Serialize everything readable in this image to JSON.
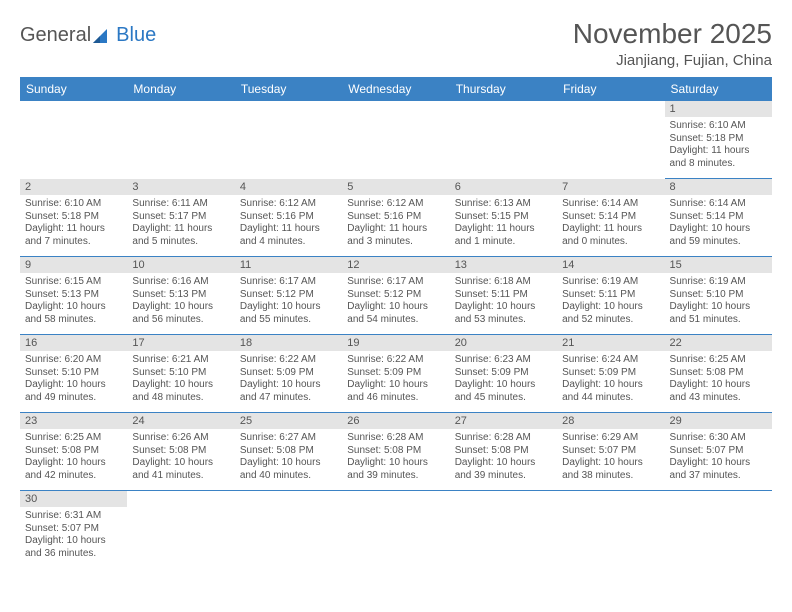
{
  "brand": {
    "word1": "General",
    "word2": "Blue"
  },
  "header": {
    "month_title": "November 2025",
    "location": "Jianjiang, Fujian, China"
  },
  "styling": {
    "header_bg": "#3b82c4",
    "header_fg": "#ffffff",
    "daynum_bg": "#e4e4e4",
    "cell_border": "#3b82c4",
    "text_color": "#555555",
    "font_family": "Arial",
    "th_fontsize": 12,
    "body_fontsize": 10,
    "title_fontsize": 28,
    "location_fontsize": 15
  },
  "weekdays": [
    "Sunday",
    "Monday",
    "Tuesday",
    "Wednesday",
    "Thursday",
    "Friday",
    "Saturday"
  ],
  "weeks": [
    [
      null,
      null,
      null,
      null,
      null,
      null,
      {
        "n": "1",
        "sr": "Sunrise: 6:10 AM",
        "ss": "Sunset: 5:18 PM",
        "dl": "Daylight: 11 hours and 8 minutes."
      }
    ],
    [
      {
        "n": "2",
        "sr": "Sunrise: 6:10 AM",
        "ss": "Sunset: 5:18 PM",
        "dl": "Daylight: 11 hours and 7 minutes."
      },
      {
        "n": "3",
        "sr": "Sunrise: 6:11 AM",
        "ss": "Sunset: 5:17 PM",
        "dl": "Daylight: 11 hours and 5 minutes."
      },
      {
        "n": "4",
        "sr": "Sunrise: 6:12 AM",
        "ss": "Sunset: 5:16 PM",
        "dl": "Daylight: 11 hours and 4 minutes."
      },
      {
        "n": "5",
        "sr": "Sunrise: 6:12 AM",
        "ss": "Sunset: 5:16 PM",
        "dl": "Daylight: 11 hours and 3 minutes."
      },
      {
        "n": "6",
        "sr": "Sunrise: 6:13 AM",
        "ss": "Sunset: 5:15 PM",
        "dl": "Daylight: 11 hours and 1 minute."
      },
      {
        "n": "7",
        "sr": "Sunrise: 6:14 AM",
        "ss": "Sunset: 5:14 PM",
        "dl": "Daylight: 11 hours and 0 minutes."
      },
      {
        "n": "8",
        "sr": "Sunrise: 6:14 AM",
        "ss": "Sunset: 5:14 PM",
        "dl": "Daylight: 10 hours and 59 minutes."
      }
    ],
    [
      {
        "n": "9",
        "sr": "Sunrise: 6:15 AM",
        "ss": "Sunset: 5:13 PM",
        "dl": "Daylight: 10 hours and 58 minutes."
      },
      {
        "n": "10",
        "sr": "Sunrise: 6:16 AM",
        "ss": "Sunset: 5:13 PM",
        "dl": "Daylight: 10 hours and 56 minutes."
      },
      {
        "n": "11",
        "sr": "Sunrise: 6:17 AM",
        "ss": "Sunset: 5:12 PM",
        "dl": "Daylight: 10 hours and 55 minutes."
      },
      {
        "n": "12",
        "sr": "Sunrise: 6:17 AM",
        "ss": "Sunset: 5:12 PM",
        "dl": "Daylight: 10 hours and 54 minutes."
      },
      {
        "n": "13",
        "sr": "Sunrise: 6:18 AM",
        "ss": "Sunset: 5:11 PM",
        "dl": "Daylight: 10 hours and 53 minutes."
      },
      {
        "n": "14",
        "sr": "Sunrise: 6:19 AM",
        "ss": "Sunset: 5:11 PM",
        "dl": "Daylight: 10 hours and 52 minutes."
      },
      {
        "n": "15",
        "sr": "Sunrise: 6:19 AM",
        "ss": "Sunset: 5:10 PM",
        "dl": "Daylight: 10 hours and 51 minutes."
      }
    ],
    [
      {
        "n": "16",
        "sr": "Sunrise: 6:20 AM",
        "ss": "Sunset: 5:10 PM",
        "dl": "Daylight: 10 hours and 49 minutes."
      },
      {
        "n": "17",
        "sr": "Sunrise: 6:21 AM",
        "ss": "Sunset: 5:10 PM",
        "dl": "Daylight: 10 hours and 48 minutes."
      },
      {
        "n": "18",
        "sr": "Sunrise: 6:22 AM",
        "ss": "Sunset: 5:09 PM",
        "dl": "Daylight: 10 hours and 47 minutes."
      },
      {
        "n": "19",
        "sr": "Sunrise: 6:22 AM",
        "ss": "Sunset: 5:09 PM",
        "dl": "Daylight: 10 hours and 46 minutes."
      },
      {
        "n": "20",
        "sr": "Sunrise: 6:23 AM",
        "ss": "Sunset: 5:09 PM",
        "dl": "Daylight: 10 hours and 45 minutes."
      },
      {
        "n": "21",
        "sr": "Sunrise: 6:24 AM",
        "ss": "Sunset: 5:09 PM",
        "dl": "Daylight: 10 hours and 44 minutes."
      },
      {
        "n": "22",
        "sr": "Sunrise: 6:25 AM",
        "ss": "Sunset: 5:08 PM",
        "dl": "Daylight: 10 hours and 43 minutes."
      }
    ],
    [
      {
        "n": "23",
        "sr": "Sunrise: 6:25 AM",
        "ss": "Sunset: 5:08 PM",
        "dl": "Daylight: 10 hours and 42 minutes."
      },
      {
        "n": "24",
        "sr": "Sunrise: 6:26 AM",
        "ss": "Sunset: 5:08 PM",
        "dl": "Daylight: 10 hours and 41 minutes."
      },
      {
        "n": "25",
        "sr": "Sunrise: 6:27 AM",
        "ss": "Sunset: 5:08 PM",
        "dl": "Daylight: 10 hours and 40 minutes."
      },
      {
        "n": "26",
        "sr": "Sunrise: 6:28 AM",
        "ss": "Sunset: 5:08 PM",
        "dl": "Daylight: 10 hours and 39 minutes."
      },
      {
        "n": "27",
        "sr": "Sunrise: 6:28 AM",
        "ss": "Sunset: 5:08 PM",
        "dl": "Daylight: 10 hours and 39 minutes."
      },
      {
        "n": "28",
        "sr": "Sunrise: 6:29 AM",
        "ss": "Sunset: 5:07 PM",
        "dl": "Daylight: 10 hours and 38 minutes."
      },
      {
        "n": "29",
        "sr": "Sunrise: 6:30 AM",
        "ss": "Sunset: 5:07 PM",
        "dl": "Daylight: 10 hours and 37 minutes."
      }
    ],
    [
      {
        "n": "30",
        "sr": "Sunrise: 6:31 AM",
        "ss": "Sunset: 5:07 PM",
        "dl": "Daylight: 10 hours and 36 minutes."
      },
      null,
      null,
      null,
      null,
      null,
      null
    ]
  ]
}
